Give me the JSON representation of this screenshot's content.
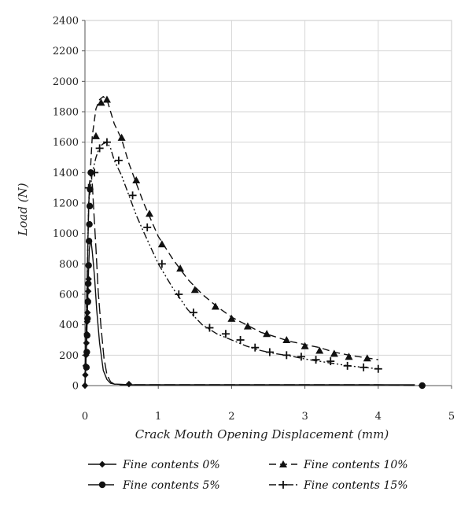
{
  "chart_data": {
    "type": "line",
    "title": "",
    "xlabel": "Crack Mouth Opening Displacement (mm)",
    "ylabel": "Load (N)",
    "xlim": [
      0,
      5
    ],
    "ylim": [
      0,
      2400
    ],
    "xticks": [
      0,
      1,
      2,
      3,
      4,
      5
    ],
    "yticks": [
      0,
      200,
      400,
      600,
      800,
      1000,
      1200,
      1400,
      1600,
      1800,
      2000,
      2200,
      2400
    ],
    "grid": true,
    "legend_position": "bottom",
    "series": [
      {
        "name": "Fine contents 0%",
        "marker": "diamond",
        "dash": "solid",
        "x": [
          0,
          0.01,
          0.02,
          0.03,
          0.04,
          0.05,
          0.06,
          0.08,
          0.1,
          0.13,
          0.16,
          0.2,
          0.25,
          0.3,
          0.35,
          0.4,
          0.5,
          0.6,
          1.0,
          2.0,
          3.0,
          4.0,
          4.5
        ],
        "y": [
          0,
          100,
          250,
          420,
          600,
          780,
          900,
          960,
          880,
          720,
          500,
          280,
          100,
          40,
          15,
          10,
          8,
          5,
          5,
          5,
          5,
          5,
          5
        ],
        "marker_x": [
          0,
          0.005,
          0.01,
          0.015,
          0.02,
          0.025,
          0.03,
          0.035,
          0.04,
          0.045,
          0.05,
          0.6
        ],
        "marker_y": [
          0,
          70,
          130,
          200,
          280,
          340,
          420,
          480,
          560,
          620,
          700,
          10
        ]
      },
      {
        "name": "Fine contents 5%",
        "marker": "circle",
        "dash": "long-dash",
        "x": [
          0,
          0.01,
          0.02,
          0.03,
          0.04,
          0.05,
          0.06,
          0.08,
          0.1,
          0.12,
          0.15,
          0.18,
          0.22,
          0.26,
          0.3,
          0.35,
          0.4,
          0.5,
          1.0,
          2.0,
          3.0,
          4.0,
          4.6
        ],
        "y": [
          0,
          150,
          380,
          650,
          940,
          1150,
          1320,
          1400,
          1330,
          1150,
          900,
          620,
          380,
          180,
          70,
          25,
          10,
          5,
          5,
          5,
          5,
          5,
          0
        ],
        "marker_x": [
          0.02,
          0.025,
          0.03,
          0.035,
          0.04,
          0.045,
          0.05,
          0.055,
          0.06,
          0.065,
          0.07,
          0.08,
          4.6
        ],
        "marker_y": [
          120,
          220,
          330,
          440,
          550,
          670,
          790,
          950,
          1060,
          1180,
          1290,
          1400,
          0
        ]
      },
      {
        "name": "Fine contents 10%",
        "marker": "triangle",
        "dash": "dash",
        "x": [
          0,
          0.05,
          0.1,
          0.15,
          0.2,
          0.25,
          0.3,
          0.35,
          0.4,
          0.5,
          0.6,
          0.7,
          0.8,
          1.0,
          1.2,
          1.4,
          1.6,
          1.8,
          2.0,
          2.2,
          2.4,
          2.6,
          2.8,
          3.0,
          3.2,
          3.4,
          3.6,
          3.8,
          4.0
        ],
        "y": [
          0,
          1200,
          1640,
          1820,
          1880,
          1900,
          1880,
          1800,
          1720,
          1620,
          1460,
          1330,
          1200,
          980,
          830,
          700,
          600,
          520,
          450,
          400,
          350,
          320,
          290,
          270,
          250,
          220,
          200,
          185,
          170
        ],
        "marker_x": [
          0.15,
          0.22,
          0.3,
          0.5,
          0.7,
          0.88,
          1.05,
          1.3,
          1.5,
          1.78,
          2.0,
          2.22,
          2.48,
          2.75,
          3.0,
          3.2,
          3.4,
          3.6,
          3.85
        ],
        "marker_y": [
          1640,
          1860,
          1880,
          1630,
          1350,
          1130,
          930,
          770,
          630,
          520,
          440,
          390,
          340,
          300,
          260,
          230,
          210,
          190,
          180
        ]
      },
      {
        "name": "Fine contents 15%",
        "marker": "plus",
        "dash": "dash-dot-dot",
        "x": [
          0,
          0.05,
          0.1,
          0.15,
          0.2,
          0.25,
          0.3,
          0.35,
          0.4,
          0.5,
          0.6,
          0.7,
          0.8,
          1.0,
          1.2,
          1.4,
          1.6,
          1.8,
          2.0,
          2.2,
          2.4,
          2.6,
          2.8,
          3.0,
          3.2,
          3.4,
          3.6,
          3.8,
          4.0
        ],
        "y": [
          0,
          1200,
          1400,
          1500,
          1570,
          1590,
          1600,
          1560,
          1480,
          1380,
          1250,
          1120,
          1010,
          800,
          640,
          500,
          400,
          340,
          300,
          260,
          230,
          210,
          195,
          175,
          160,
          145,
          130,
          120,
          110
        ],
        "marker_x": [
          0.05,
          0.13,
          0.2,
          0.3,
          0.46,
          0.65,
          0.85,
          1.05,
          1.28,
          1.48,
          1.7,
          1.92,
          2.12,
          2.32,
          2.52,
          2.75,
          2.95,
          3.15,
          3.35,
          3.58,
          3.8,
          4.0
        ],
        "marker_y": [
          1300,
          1400,
          1560,
          1600,
          1480,
          1250,
          1040,
          800,
          600,
          480,
          380,
          340,
          300,
          250,
          220,
          200,
          190,
          170,
          160,
          130,
          120,
          110
        ]
      }
    ]
  }
}
